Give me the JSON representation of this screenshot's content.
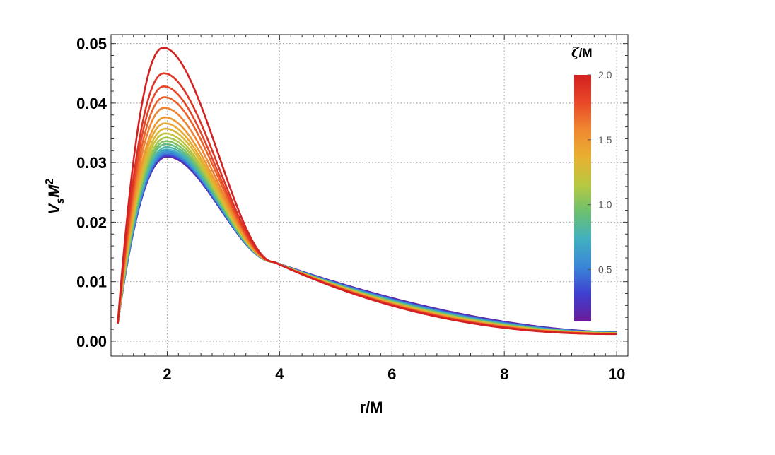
{
  "chart_data": {
    "type": "line",
    "title": "",
    "xlabel": "r/M",
    "ylabel": {
      "base": "V",
      "subscript": "s",
      "mid": "M",
      "superscript": "2"
    },
    "xlim": [
      1.0,
      10.2
    ],
    "ylim": [
      -0.0025,
      0.0515
    ],
    "grid": true,
    "x_ticks": [
      2,
      4,
      6,
      8,
      10
    ],
    "x_tick_labels": [
      "2",
      "4",
      "6",
      "8",
      "10"
    ],
    "y_ticks": [
      0.0,
      0.01,
      0.02,
      0.03,
      0.04,
      0.05
    ],
    "y_tick_labels": [
      "0.00",
      "0.01",
      "0.02",
      "0.03",
      "0.04",
      "0.05"
    ],
    "x_range_plotted": [
      1.12,
      10.0
    ],
    "curve_family": "one curve per zeta/M value from 0.1 to 2.0 (20 curves), colored by rainbow colormap",
    "series_peaks": [
      {
        "zeta": 0.1,
        "peak_r": 2.0,
        "peak_V": 0.031
      },
      {
        "zeta": 0.2,
        "peak_r": 2.0,
        "peak_V": 0.0311
      },
      {
        "zeta": 0.3,
        "peak_r": 2.0,
        "peak_V": 0.0312
      },
      {
        "zeta": 0.4,
        "peak_r": 2.0,
        "peak_V": 0.0314
      },
      {
        "zeta": 0.5,
        "peak_r": 2.0,
        "peak_V": 0.0316
      },
      {
        "zeta": 0.6,
        "peak_r": 1.99,
        "peak_V": 0.0319
      },
      {
        "zeta": 0.7,
        "peak_r": 1.99,
        "peak_V": 0.0322
      },
      {
        "zeta": 0.8,
        "peak_r": 1.99,
        "peak_V": 0.0326
      },
      {
        "zeta": 0.9,
        "peak_r": 1.98,
        "peak_V": 0.0331
      },
      {
        "zeta": 1.0,
        "peak_r": 1.98,
        "peak_V": 0.0336
      },
      {
        "zeta": 1.1,
        "peak_r": 1.98,
        "peak_V": 0.0342
      },
      {
        "zeta": 1.2,
        "peak_r": 1.97,
        "peak_V": 0.0349
      },
      {
        "zeta": 1.3,
        "peak_r": 1.97,
        "peak_V": 0.0357
      },
      {
        "zeta": 1.4,
        "peak_r": 1.96,
        "peak_V": 0.0366
      },
      {
        "zeta": 1.5,
        "peak_r": 1.96,
        "peak_V": 0.0376
      },
      {
        "zeta": 1.6,
        "peak_r": 1.95,
        "peak_V": 0.0392
      },
      {
        "zeta": 1.7,
        "peak_r": 1.95,
        "peak_V": 0.041
      },
      {
        "zeta": 1.8,
        "peak_r": 1.94,
        "peak_V": 0.0428
      },
      {
        "zeta": 1.9,
        "peak_r": 1.94,
        "peak_V": 0.045
      },
      {
        "zeta": 2.0,
        "peak_r": 1.93,
        "peak_V": 0.0493
      }
    ],
    "crossing_point": {
      "r": 3.9,
      "V": 0.0133
    },
    "start_value": {
      "r": 1.12,
      "V": 0.003
    },
    "end_values": {
      "r": 10.0,
      "V_min": 0.0012,
      "V_max": 0.0015
    },
    "colorbar": {
      "title_symbol": "ζ",
      "title_rest": "/M",
      "range": [
        0.1,
        2.0
      ],
      "ticks": [
        0.5,
        1.0,
        1.5,
        2.0
      ],
      "tick_labels": [
        "0.5",
        "1.0",
        "1.5",
        "2.0"
      ],
      "colors": [
        "#6a1b9a",
        "#3f3fd0",
        "#3a86d8",
        "#40b0c0",
        "#6cc070",
        "#b8c840",
        "#e8b030",
        "#f08830",
        "#e84828",
        "#d42020"
      ]
    }
  }
}
